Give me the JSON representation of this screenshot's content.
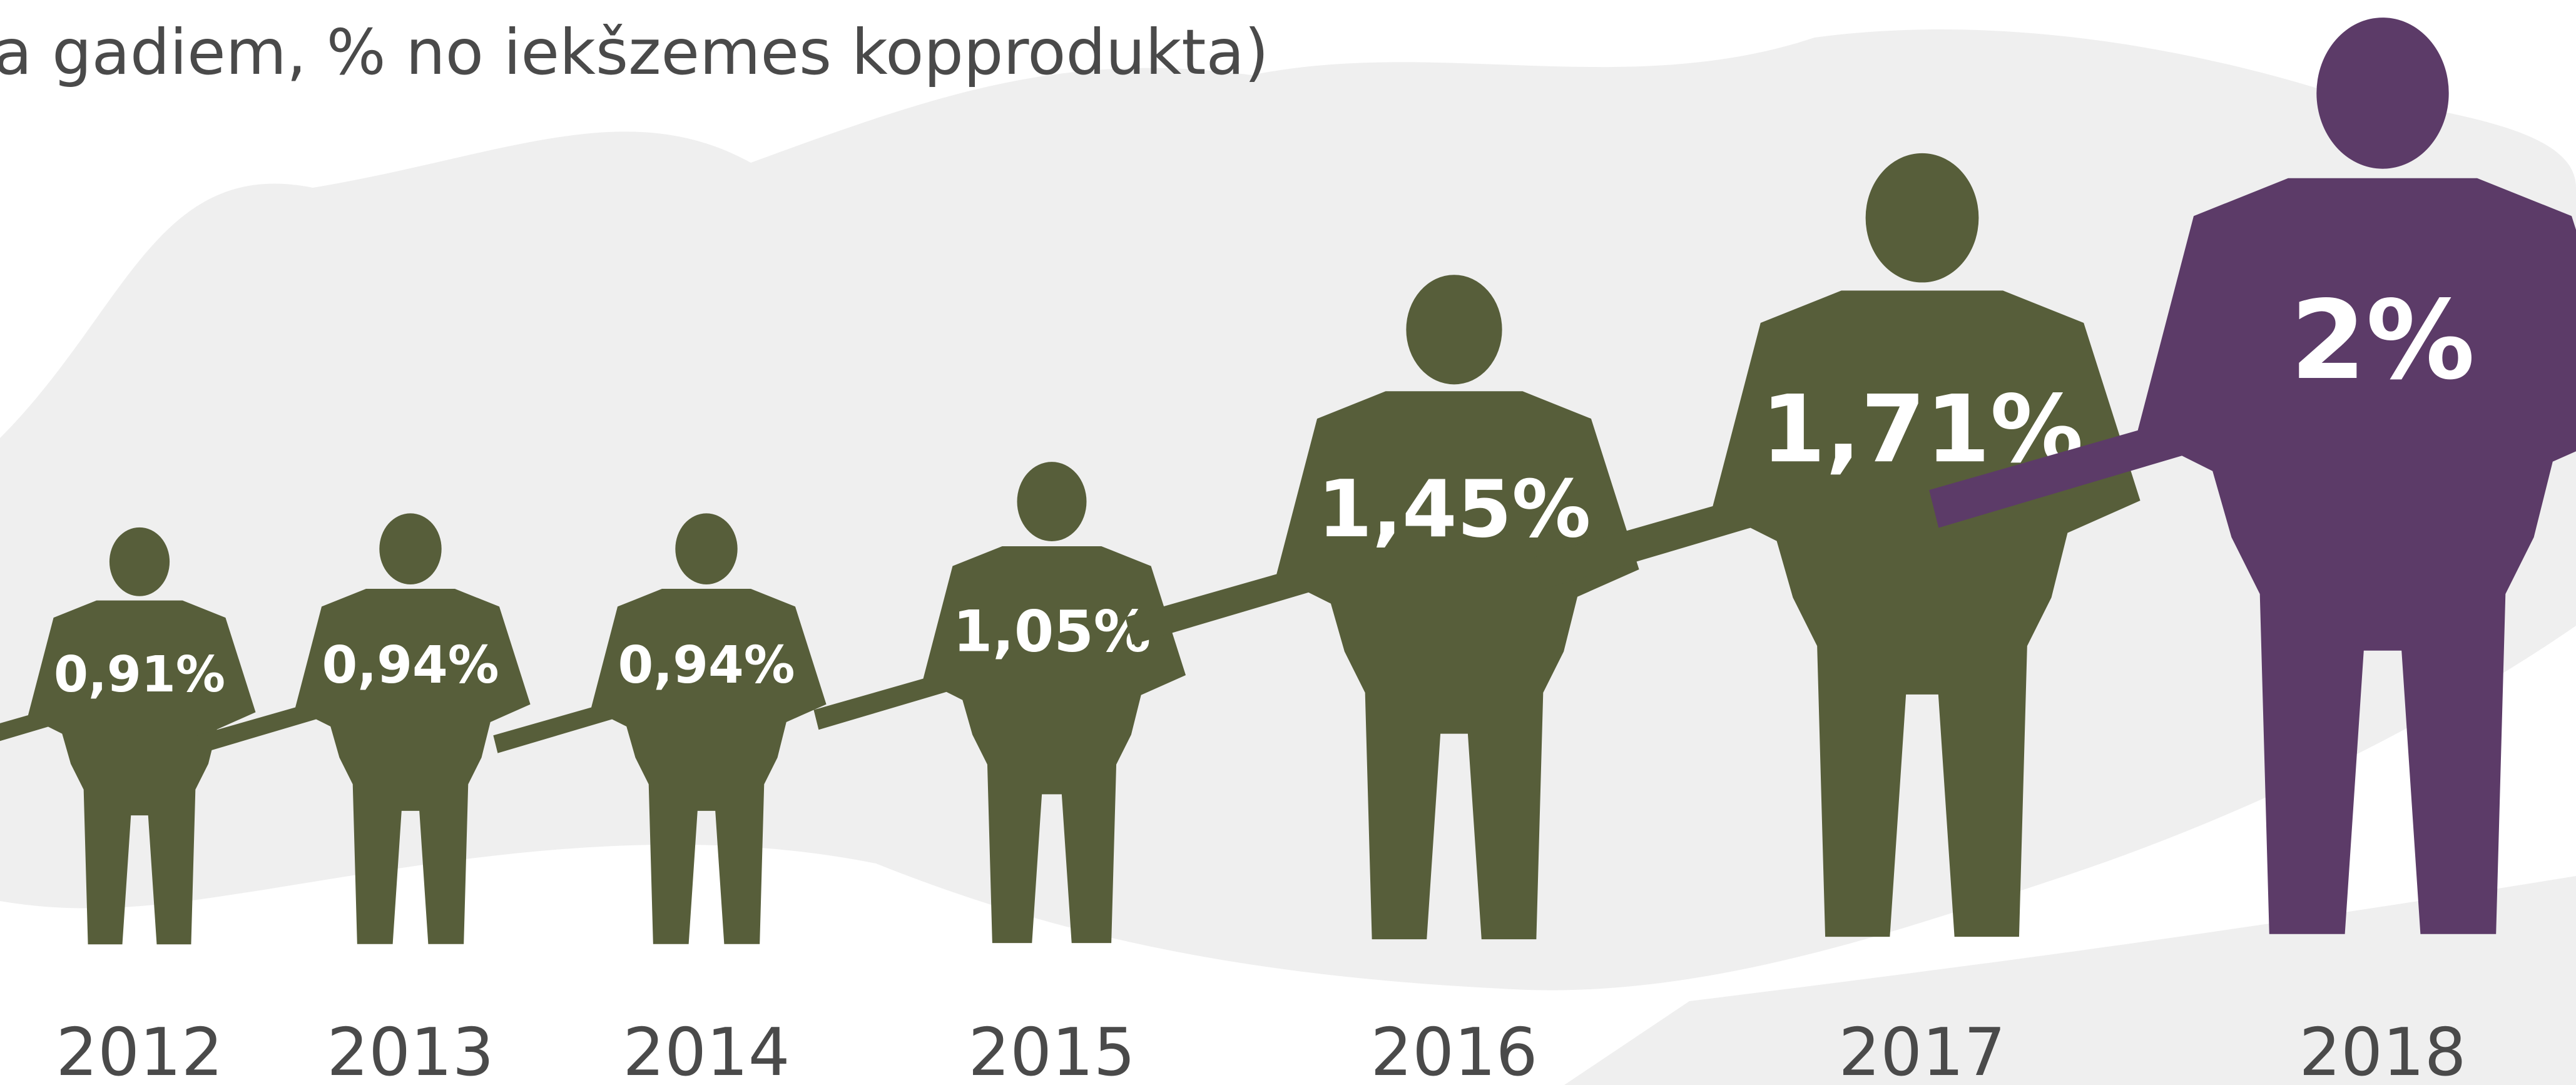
{
  "chart_data": {
    "type": "pictogram",
    "subtitle": "a gadiem, % no iekšzemes kopprodukta)",
    "categories": [
      "2012",
      "2013",
      "2014",
      "2015",
      "2016",
      "2017",
      "2018"
    ],
    "values": [
      0.91,
      0.94,
      0.94,
      1.05,
      1.45,
      1.71,
      2
    ],
    "value_labels": [
      "0,91%",
      "0,94%",
      "0,94%",
      "1,05%",
      "1,45%",
      "1,71%",
      "2%"
    ],
    "colors": [
      "#575e3a",
      "#575e3a",
      "#575e3a",
      "#575e3a",
      "#575e3a",
      "#575e3a",
      "#5c3b68"
    ]
  }
}
